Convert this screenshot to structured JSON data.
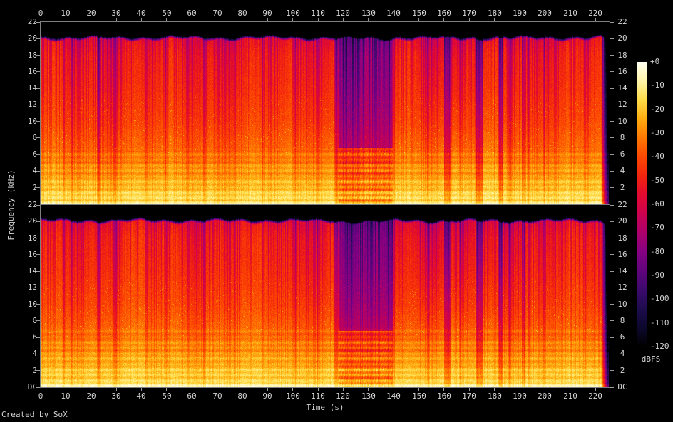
{
  "labels": {
    "time_axis": "Time (s)",
    "freq_axis": "Frequency (kHz)",
    "colorbar_unit": "dBFS",
    "credit": "Created by SoX"
  },
  "axis_ticks": {
    "time": [
      "0",
      "10",
      "20",
      "30",
      "40",
      "50",
      "60",
      "70",
      "80",
      "90",
      "100",
      "110",
      "120",
      "130",
      "140",
      "150",
      "160",
      "170",
      "180",
      "190",
      "200",
      "210",
      "220"
    ],
    "freq_ch1": [
      "22",
      "20",
      "18",
      "16",
      "14",
      "12",
      "10",
      "8",
      "6",
      "4",
      "2"
    ],
    "freq_ch2": [
      "22",
      "20",
      "18",
      "16",
      "14",
      "12",
      "10",
      "8",
      "6",
      "4",
      "2",
      "DC"
    ],
    "colorbar": [
      "+0",
      "-10",
      "-20",
      "-30",
      "-40",
      "-50",
      "-60",
      "-70",
      "-80",
      "-90",
      "-100",
      "-110",
      "-120"
    ]
  },
  "colors": {
    "background": "#000000",
    "axis_text": "#d4d4d4",
    "tick": "#9a9a9a",
    "frame": "#7f7f7f"
  },
  "chart_data": {
    "type": "heatmap",
    "subtype": "audio_spectrogram_stereo",
    "xlabel": "Time (s)",
    "ylabel": "Frequency (kHz)",
    "colorbar_label": "dBFS",
    "channels": [
      "channel-1",
      "channel-2"
    ],
    "x_range_s": [
      0,
      225.6
    ],
    "audio_end_s": 225.3,
    "y_range_khz": [
      0,
      22
    ],
    "z_range_dbfs": [
      -120,
      0
    ],
    "lowpass_cutoff_khz": 20.35,
    "palette_stops_db_rgb": [
      [
        -120,
        0,
        0,
        0
      ],
      [
        -112,
        13,
        8,
        45
      ],
      [
        -104,
        30,
        12,
        78
      ],
      [
        -96,
        60,
        10,
        108
      ],
      [
        -88,
        97,
        4,
        125
      ],
      [
        -80,
        133,
        0,
        130
      ],
      [
        -72,
        172,
        0,
        108
      ],
      [
        -64,
        203,
        2,
        80
      ],
      [
        -56,
        225,
        10,
        47
      ],
      [
        -48,
        242,
        37,
        14
      ],
      [
        -40,
        252,
        72,
        2
      ],
      [
        -32,
        255,
        120,
        2
      ],
      [
        -24,
        255,
        172,
        16
      ],
      [
        -16,
        255,
        219,
        72
      ],
      [
        -8,
        255,
        244,
        170
      ],
      [
        0,
        255,
        255,
        242
      ]
    ],
    "base_profile_khz_db": [
      [
        0,
        -13
      ],
      [
        0.35,
        -15
      ],
      [
        1.5,
        -18
      ],
      [
        3,
        -24
      ],
      [
        5,
        -30
      ],
      [
        7,
        -36
      ],
      [
        10,
        -42
      ],
      [
        14,
        -47
      ],
      [
        18,
        -51
      ],
      [
        20.1,
        -57
      ],
      [
        20.35,
        -70
      ],
      [
        22,
        -120
      ]
    ],
    "events": {
      "quiet_section": {
        "start_s": 118.3,
        "end_s": 139.4,
        "high_att_db": 33,
        "low_att_db": 11,
        "split_khz": 6.8
      },
      "silence_gaps_s_w_depth": [
        [
          9.3,
          0.5,
          0.45
        ],
        [
          12.6,
          0.4,
          0.3
        ],
        [
          23.0,
          0.9,
          0.7
        ],
        [
          29.5,
          1.0,
          0.5
        ],
        [
          42.0,
          0.5,
          0.35
        ],
        [
          49.5,
          0.5,
          0.35
        ],
        [
          58.5,
          0.5,
          0.3
        ],
        [
          65.0,
          0.8,
          0.45
        ],
        [
          77.0,
          0.5,
          0.3
        ],
        [
          88.0,
          0.4,
          0.3
        ],
        [
          101.0,
          0.5,
          0.35
        ],
        [
          110.0,
          0.4,
          0.3
        ],
        [
          117.3,
          1.1,
          0.7
        ],
        [
          140.1,
          0.5,
          0.4
        ],
        [
          153.6,
          0.5,
          0.45
        ],
        [
          161.3,
          2.2,
          0.85
        ],
        [
          166.5,
          0.6,
          0.4
        ],
        [
          173.9,
          2.6,
          0.8
        ],
        [
          182.4,
          1.3,
          0.75
        ],
        [
          186.1,
          0.8,
          0.5
        ],
        [
          191.6,
          1.1,
          0.55
        ],
        [
          193.8,
          0.7,
          0.4
        ],
        [
          199.5,
          0.6,
          0.35
        ],
        [
          210.5,
          0.5,
          0.3
        ],
        [
          216.0,
          0.4,
          0.3
        ]
      ],
      "dim_sections_s_db": [
        [
          150,
          161,
          5
        ],
        [
          162.5,
          168.5,
          9
        ],
        [
          175.5,
          179.5,
          6
        ]
      ],
      "end_fade_start_s": 222.2
    },
    "texture_seeds": {
      "ch1": 101,
      "ch2": 202
    }
  }
}
